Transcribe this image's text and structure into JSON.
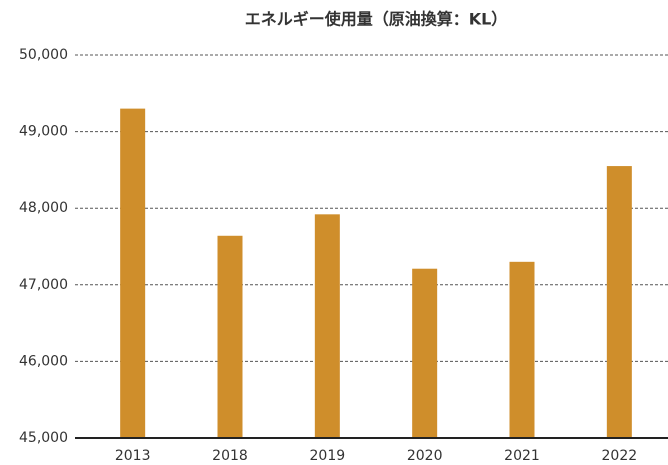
{
  "chart_data": {
    "type": "bar",
    "title": "エネルギー使用量（原油換算：KL）",
    "categories": [
      "2013",
      "2018",
      "2019",
      "2020",
      "2021",
      "2022"
    ],
    "values": [
      49300,
      47640,
      47920,
      47210,
      47300,
      48550
    ],
    "color": "#cf8e2b",
    "ylim": [
      45000,
      50000
    ],
    "yticks": [
      {
        "value": 45000,
        "label": "45,000"
      },
      {
        "value": 46000,
        "label": "46,000"
      },
      {
        "value": 47000,
        "label": "47,000"
      },
      {
        "value": 48000,
        "label": "48,000"
      },
      {
        "value": 49000,
        "label": "49,000"
      },
      {
        "value": 50000,
        "label": "50,000"
      }
    ],
    "grid": true
  }
}
